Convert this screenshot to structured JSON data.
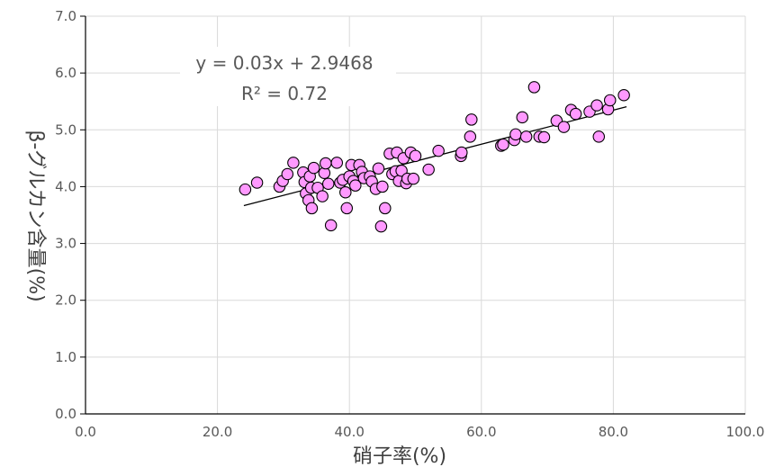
{
  "chart_data": {
    "type": "scatter",
    "xlabel": "硝子率(%)",
    "ylabel": "β-グルカン含量(%)",
    "xlim": [
      0,
      100
    ],
    "ylim": [
      0,
      7
    ],
    "x_ticks": [
      "0.0",
      "20.0",
      "40.0",
      "60.0",
      "80.0",
      "100.0"
    ],
    "y_ticks": [
      "0.0",
      "1.0",
      "2.0",
      "3.0",
      "4.0",
      "5.0",
      "6.0",
      "7.0"
    ],
    "grid": true,
    "legend": "none",
    "trendline": {
      "equation": "y = 0.03x + 2.9468",
      "r_squared": "R² = 0.72",
      "slope": 0.03,
      "intercept": 2.9468,
      "x_range": [
        24,
        82
      ]
    },
    "marker_color": "#ff99ff",
    "marker_edge": "#000000",
    "points": [
      [
        24.2,
        3.95
      ],
      [
        26.0,
        4.07
      ],
      [
        29.4,
        4.0
      ],
      [
        29.9,
        4.1
      ],
      [
        30.6,
        4.22
      ],
      [
        31.5,
        4.42
      ],
      [
        33.0,
        4.25
      ],
      [
        33.2,
        4.08
      ],
      [
        33.4,
        3.88
      ],
      [
        33.8,
        3.76
      ],
      [
        34.0,
        4.18
      ],
      [
        34.2,
        3.98
      ],
      [
        34.3,
        3.62
      ],
      [
        34.6,
        4.33
      ],
      [
        35.2,
        3.98
      ],
      [
        35.9,
        3.83
      ],
      [
        36.2,
        4.24
      ],
      [
        36.4,
        4.41
      ],
      [
        36.8,
        4.05
      ],
      [
        37.2,
        3.32
      ],
      [
        38.1,
        4.42
      ],
      [
        38.6,
        4.07
      ],
      [
        39.0,
        4.12
      ],
      [
        39.4,
        3.9
      ],
      [
        39.6,
        3.62
      ],
      [
        40.0,
        4.18
      ],
      [
        40.3,
        4.38
      ],
      [
        40.6,
        4.1
      ],
      [
        40.9,
        4.02
      ],
      [
        41.5,
        4.38
      ],
      [
        41.9,
        4.26
      ],
      [
        42.2,
        4.15
      ],
      [
        43.1,
        4.18
      ],
      [
        43.4,
        4.09
      ],
      [
        44.0,
        3.96
      ],
      [
        44.4,
        4.32
      ],
      [
        44.8,
        3.3
      ],
      [
        45.0,
        4.0
      ],
      [
        45.4,
        3.62
      ],
      [
        46.1,
        4.58
      ],
      [
        46.5,
        4.22
      ],
      [
        47.0,
        4.27
      ],
      [
        47.2,
        4.6
      ],
      [
        47.5,
        4.1
      ],
      [
        47.9,
        4.28
      ],
      [
        48.2,
        4.5
      ],
      [
        48.6,
        4.06
      ],
      [
        48.8,
        4.14
      ],
      [
        49.3,
        4.6
      ],
      [
        49.7,
        4.14
      ],
      [
        50.0,
        4.54
      ],
      [
        52.0,
        4.3
      ],
      [
        53.5,
        4.63
      ],
      [
        56.9,
        4.54
      ],
      [
        57.0,
        4.6
      ],
      [
        58.3,
        4.88
      ],
      [
        58.5,
        5.18
      ],
      [
        63.0,
        4.72
      ],
      [
        63.3,
        4.74
      ],
      [
        65.0,
        4.82
      ],
      [
        65.2,
        4.92
      ],
      [
        66.2,
        5.22
      ],
      [
        66.8,
        4.88
      ],
      [
        68.0,
        5.75
      ],
      [
        68.8,
        4.88
      ],
      [
        69.5,
        4.87
      ],
      [
        71.4,
        5.16
      ],
      [
        72.5,
        5.05
      ],
      [
        73.6,
        5.35
      ],
      [
        74.3,
        5.28
      ],
      [
        76.4,
        5.32
      ],
      [
        77.5,
        5.43
      ],
      [
        77.8,
        4.88
      ],
      [
        79.2,
        5.36
      ],
      [
        79.5,
        5.52
      ],
      [
        81.6,
        5.61
      ]
    ]
  }
}
